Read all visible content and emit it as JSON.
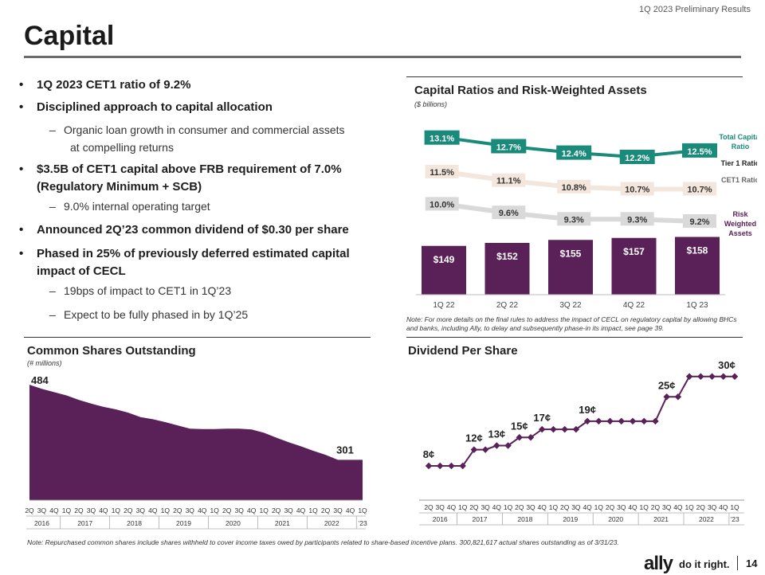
{
  "header": {
    "report": "1Q 2023 Preliminary Results",
    "title": "Capital",
    "page": "14"
  },
  "bullets": {
    "b1": "1Q 2023 CET1 ratio of 9.2%",
    "b2": "Disciplined approach to capital allocation",
    "b2_sub1_line1": "Organic loan growth in consumer and commercial assets",
    "b2_sub1_line2": "at compelling returns",
    "b3_line1": "$3.5B of CET1 capital above FRB requirement of 7.0%",
    "b3_line2": "(Regulatory Minimum + SCB)",
    "b3_sub1": "9.0% internal operating target",
    "b4": "Announced 2Q’23 common dividend of $0.30 per share",
    "b5_line1": "Phased in 25% of previously deferred estimated capital",
    "b5_line2": "impact of CECL",
    "b5_sub1": "19bps of impact to CET1 in 1Q’23",
    "b5_sub2": "Expect to be fully phased in by 1Q’25"
  },
  "capital_section": {
    "title": "Capital Ratios and Risk-Weighted Assets",
    "subtitle": "($ billions)",
    "note_line1": "Note: For more details on the final rules to address the impact of CECL on regulatory capital by allowing BHCs",
    "note_line2": "and banks, including Ally, to delay and subsequently phase-in its impact, see page 39.",
    "legend_total_1": "Total Capital",
    "legend_total_2": "Ratio",
    "legend_tier1": "Tier 1 Ratio",
    "legend_cet1": "CET1 Ratio",
    "legend_rwa_1": "Risk",
    "legend_rwa_2": "Weighted",
    "legend_rwa_3": "Assets"
  },
  "shares_section": {
    "title": "Common Shares Outstanding",
    "subtitle": "(# millions)",
    "start_label": "484",
    "end_label": "301"
  },
  "dividend_section": {
    "title": "Dividend Per Share"
  },
  "footer_note": "Note: Repurchased common shares include shares withheld to cover income taxes owed by participants related to share-based incentive plans. 300,821,617 actual shares outstanding as of 3/31/23.",
  "brand": {
    "logo": "ally",
    "tagline": "do it right."
  },
  "colors": {
    "purple": "#5a2058",
    "teal": "#1a8a7a",
    "tier1_bg": "#f3e6dc",
    "cet1_bg": "#d9d9d9"
  },
  "chart_data": [
    {
      "type": "bar",
      "title": "Capital Ratios and Risk-Weighted Assets",
      "categories": [
        "1Q 22",
        "2Q 22",
        "3Q 22",
        "4Q 22",
        "1Q 23"
      ],
      "series": [
        {
          "name": "Risk Weighted Assets",
          "values": [
            149,
            152,
            155,
            157,
            158
          ],
          "labels": [
            "$149",
            "$152",
            "$155",
            "$157",
            "$158"
          ]
        },
        {
          "name": "Total Capital Ratio",
          "values": [
            13.1,
            12.7,
            12.4,
            12.2,
            12.5
          ],
          "labels": [
            "13.1%",
            "12.7%",
            "12.4%",
            "12.2%",
            "12.5%"
          ]
        },
        {
          "name": "Tier 1 Ratio",
          "values": [
            11.5,
            11.1,
            10.8,
            10.7,
            10.7
          ],
          "labels": [
            "11.5%",
            "11.1%",
            "10.8%",
            "10.7%",
            "10.7%"
          ]
        },
        {
          "name": "CET1 Ratio",
          "values": [
            10.0,
            9.6,
            9.3,
            9.3,
            9.2
          ],
          "labels": [
            "10.0%",
            "9.6%",
            "9.3%",
            "9.3%",
            "9.2%"
          ]
        }
      ]
    },
    {
      "type": "area",
      "title": "Common Shares Outstanding",
      "ylabel": "# millions",
      "x": [
        "2Q",
        "3Q",
        "4Q",
        "1Q",
        "2Q",
        "3Q",
        "4Q",
        "1Q",
        "2Q",
        "3Q",
        "4Q",
        "1Q",
        "2Q",
        "3Q",
        "4Q",
        "1Q",
        "2Q",
        "3Q",
        "4Q",
        "1Q",
        "2Q",
        "3Q",
        "4Q",
        "1Q",
        "2Q",
        "3Q",
        "4Q",
        "1Q"
      ],
      "values": [
        484,
        474,
        466,
        458,
        447,
        438,
        430,
        424,
        416,
        405,
        400,
        393,
        385,
        377,
        376,
        376,
        377,
        377,
        375,
        367,
        355,
        344,
        334,
        323,
        313,
        301,
        301,
        301
      ],
      "years": [
        "2016",
        "2017",
        "2018",
        "2019",
        "2020",
        "2021",
        "2022",
        "’23"
      ],
      "year_quarter_counts": [
        3,
        4,
        4,
        4,
        4,
        4,
        4,
        1
      ]
    },
    {
      "type": "line",
      "title": "Dividend Per Share",
      "ylabel": "cents",
      "x": [
        "2Q",
        "3Q",
        "4Q",
        "1Q",
        "2Q",
        "3Q",
        "4Q",
        "1Q",
        "2Q",
        "3Q",
        "4Q",
        "1Q",
        "2Q",
        "3Q",
        "4Q",
        "1Q",
        "2Q",
        "3Q",
        "4Q",
        "1Q",
        "2Q",
        "3Q",
        "4Q",
        "1Q",
        "2Q",
        "3Q",
        "4Q",
        "1Q"
      ],
      "values": [
        8,
        8,
        8,
        8,
        12,
        12,
        13,
        13,
        15,
        15,
        17,
        17,
        17,
        17,
        19,
        19,
        19,
        19,
        19,
        19,
        19,
        25,
        25,
        30,
        30,
        30,
        30,
        30
      ],
      "annotations": [
        {
          "index": 0,
          "label": "8¢"
        },
        {
          "index": 4,
          "label": "12¢"
        },
        {
          "index": 6,
          "label": "13¢"
        },
        {
          "index": 8,
          "label": "15¢"
        },
        {
          "index": 10,
          "label": "17¢"
        },
        {
          "index": 14,
          "label": "19¢"
        },
        {
          "index": 21,
          "label": "25¢"
        },
        {
          "index": 27,
          "label": "30¢"
        }
      ],
      "years": [
        "2016",
        "2017",
        "2018",
        "2019",
        "2020",
        "2021",
        "2022",
        "’23"
      ],
      "year_quarter_counts": [
        3,
        4,
        4,
        4,
        4,
        4,
        4,
        1
      ]
    }
  ]
}
